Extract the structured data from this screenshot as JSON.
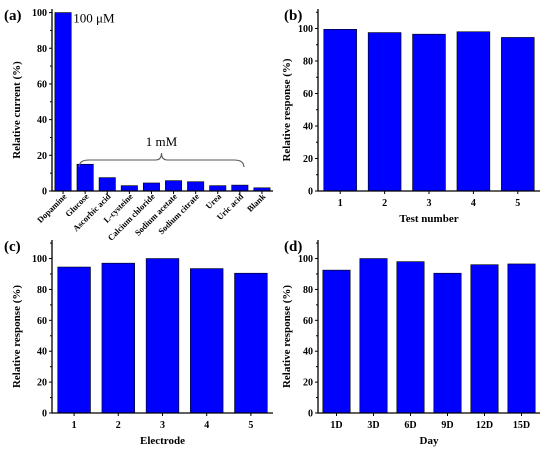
{
  "chart_data": [
    {
      "panel": "(a)",
      "type": "bar",
      "categories": [
        "Dopamine",
        "Glucose",
        "Ascorbic acid",
        "L-cysteine",
        "Calcium chloride",
        "Sodium acetate",
        "Sodium citrate",
        "Urea",
        "Uric acid",
        "Blank"
      ],
      "values": [
        100,
        15,
        7.5,
        3,
        4.5,
        5.8,
        5.2,
        3,
        3.3,
        1.8
      ],
      "ylabel": "Relative current (%)",
      "xlabel": "",
      "ylim": [
        0,
        102
      ],
      "yticks": [
        0,
        20,
        40,
        60,
        80,
        100
      ],
      "annotations": [
        "100 μM",
        "1 mM"
      ],
      "grid": false
    },
    {
      "panel": "(b)",
      "type": "bar",
      "categories": [
        "1",
        "2",
        "3",
        "4",
        "5"
      ],
      "values": [
        99.5,
        97.5,
        96.5,
        98,
        94.5
      ],
      "ylabel": "Relative response (%)",
      "xlabel": "Test number",
      "ylim": [
        0,
        112
      ],
      "yticks": [
        0,
        20,
        40,
        60,
        80,
        100
      ],
      "grid": false
    },
    {
      "panel": "(c)",
      "type": "bar",
      "categories": [
        "1",
        "2",
        "3",
        "4",
        "5"
      ],
      "values": [
        94.5,
        97,
        100,
        93.5,
        90.5
      ],
      "ylabel": "Relative response (%)",
      "xlabel": "Electrode",
      "ylim": [
        0,
        112
      ],
      "yticks": [
        0,
        20,
        40,
        60,
        80,
        100
      ],
      "grid": false
    },
    {
      "panel": "(d)",
      "type": "bar",
      "categories": [
        "1D",
        "3D",
        "6D",
        "9D",
        "12D",
        "15D"
      ],
      "values": [
        92.5,
        100,
        98,
        90.5,
        96,
        96.5
      ],
      "ylabel": "Relative response (%)",
      "xlabel": "Day",
      "ylim": [
        0,
        112
      ],
      "yticks": [
        0,
        20,
        40,
        60,
        80,
        100
      ],
      "grid": false
    }
  ],
  "colors": {
    "bar": "#0000ff",
    "axis": "#000000"
  }
}
